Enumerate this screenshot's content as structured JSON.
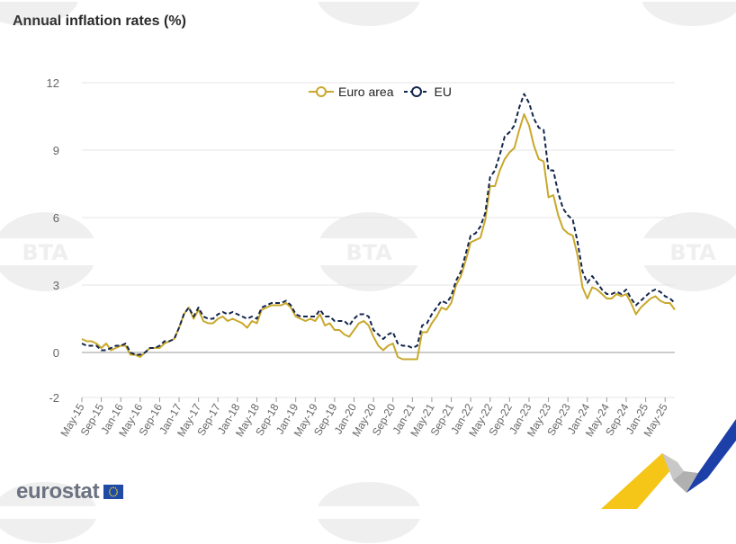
{
  "title": "Annual inflation rates (%)",
  "watermark_text": "BTA",
  "logo": {
    "text": "eurostat"
  },
  "colors": {
    "euro_area": "#c9a82c",
    "eu": "#14264d",
    "grid": "#e6e6e6",
    "axis_text": "#666666"
  },
  "chart_data": {
    "type": "line",
    "ylim": [
      -2,
      12
    ],
    "yticks": [
      -2,
      0,
      3,
      6,
      9,
      12
    ],
    "xticks": [
      "May-15",
      "Sep-15",
      "Jan-16",
      "May-16",
      "Sep-16",
      "Jan-17",
      "May-17",
      "Sep-17",
      "Jan-18",
      "May-18",
      "Sep-18",
      "Jan-19",
      "May-19",
      "Sep-19",
      "Jan-20",
      "May-20",
      "Sep-20",
      "Jan-21",
      "May-21",
      "Sep-21",
      "Jan-22",
      "May-22",
      "Sep-22",
      "Jan-23",
      "May-23",
      "Sep-23",
      "Jan-24",
      "May-24",
      "Sep-24",
      "Jan-25",
      "May-25"
    ],
    "legend_position": "top-center",
    "series": [
      {
        "name": "Euro area",
        "style": "solid",
        "values": [
          0.6,
          0.5,
          0.5,
          0.4,
          0.2,
          0.4,
          0.1,
          0.2,
          0.3,
          0.3,
          -0.1,
          -0.1,
          -0.2,
          0.0,
          0.2,
          0.2,
          0.2,
          0.4,
          0.5,
          0.6,
          1.1,
          1.7,
          2.0,
          1.5,
          1.9,
          1.4,
          1.3,
          1.3,
          1.5,
          1.6,
          1.4,
          1.5,
          1.4,
          1.3,
          1.1,
          1.4,
          1.3,
          1.9,
          2.0,
          2.1,
          2.1,
          2.1,
          2.2,
          2.0,
          1.6,
          1.5,
          1.4,
          1.5,
          1.4,
          1.7,
          1.2,
          1.3,
          1.0,
          1.0,
          0.8,
          0.7,
          1.0,
          1.3,
          1.4,
          1.2,
          0.7,
          0.3,
          0.1,
          0.3,
          0.4,
          -0.2,
          -0.3,
          -0.3,
          -0.3,
          -0.3,
          0.9,
          0.9,
          1.3,
          1.6,
          2.0,
          1.9,
          2.2,
          3.0,
          3.4,
          4.1,
          4.9,
          5.0,
          5.1,
          5.9,
          7.4,
          7.4,
          8.1,
          8.6,
          8.9,
          9.1,
          9.9,
          10.6,
          10.1,
          9.2,
          8.6,
          8.5,
          6.9,
          7.0,
          6.1,
          5.5,
          5.3,
          5.2,
          4.3,
          2.9,
          2.4,
          2.9,
          2.8,
          2.6,
          2.4,
          2.4,
          2.6,
          2.5,
          2.6,
          2.2,
          1.7,
          2.0,
          2.2,
          2.4,
          2.5,
          2.3,
          2.2,
          2.2,
          1.9
        ]
      },
      {
        "name": "EU",
        "style": "dashed",
        "values": [
          0.4,
          0.3,
          0.3,
          0.3,
          0.1,
          0.1,
          0.2,
          0.3,
          0.3,
          0.4,
          0.0,
          -0.1,
          -0.1,
          0.0,
          0.2,
          0.2,
          0.3,
          0.5,
          0.5,
          0.6,
          1.1,
          1.7,
          2.0,
          1.6,
          2.0,
          1.6,
          1.5,
          1.5,
          1.7,
          1.8,
          1.7,
          1.8,
          1.7,
          1.6,
          1.5,
          1.6,
          1.5,
          2.0,
          2.1,
          2.2,
          2.2,
          2.2,
          2.3,
          2.1,
          1.7,
          1.6,
          1.6,
          1.6,
          1.6,
          1.9,
          1.6,
          1.6,
          1.4,
          1.4,
          1.4,
          1.2,
          1.5,
          1.7,
          1.7,
          1.6,
          1.0,
          0.8,
          0.6,
          0.8,
          0.9,
          0.4,
          0.3,
          0.3,
          0.2,
          0.3,
          1.2,
          1.3,
          1.7,
          2.0,
          2.3,
          2.2,
          2.5,
          3.2,
          3.6,
          4.4,
          5.2,
          5.3,
          5.6,
          6.2,
          7.8,
          8.1,
          8.8,
          9.6,
          9.8,
          10.1,
          10.9,
          11.5,
          11.1,
          10.4,
          10.0,
          9.9,
          8.1,
          8.1,
          7.1,
          6.4,
          6.1,
          5.9,
          4.9,
          3.6,
          3.1,
          3.4,
          3.1,
          2.8,
          2.6,
          2.6,
          2.7,
          2.6,
          2.8,
          2.4,
          2.1,
          2.3,
          2.5,
          2.7,
          2.8,
          2.7,
          2.5,
          2.4,
          2.2
        ]
      }
    ]
  }
}
